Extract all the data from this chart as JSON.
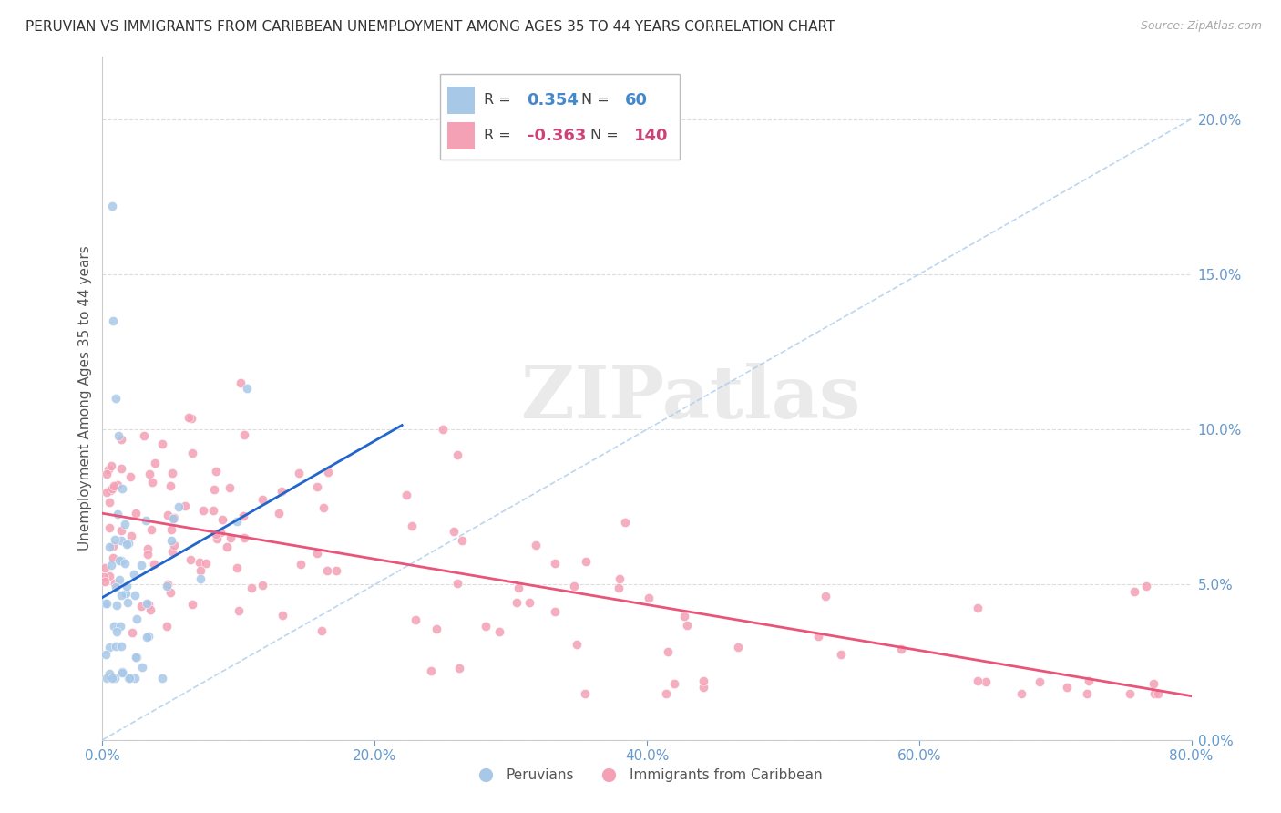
{
  "title": "PERUVIAN VS IMMIGRANTS FROM CARIBBEAN UNEMPLOYMENT AMONG AGES 35 TO 44 YEARS CORRELATION CHART",
  "source": "Source: ZipAtlas.com",
  "xlim": [
    0,
    0.8
  ],
  "ylim": [
    0,
    0.22
  ],
  "watermark": "ZIPatlas",
  "legend_R1_val": "0.354",
  "legend_N1_val": "60",
  "legend_R2_val": "-0.363",
  "legend_N2_val": "140",
  "blue_color": "#a8c8e8",
  "pink_color": "#f4a0b5",
  "blue_line_color": "#2266cc",
  "pink_line_color": "#e8547a",
  "blue_text_color": "#4488cc",
  "pink_text_color": "#cc4477",
  "peruvians_label": "Peruvians",
  "caribbean_label": "Immigrants from Caribbean",
  "ylabel": "Unemployment Among Ages 35 to 44 years",
  "grid_color": "#dddddd",
  "tick_color": "#6699cc",
  "axis_color": "#cccccc"
}
